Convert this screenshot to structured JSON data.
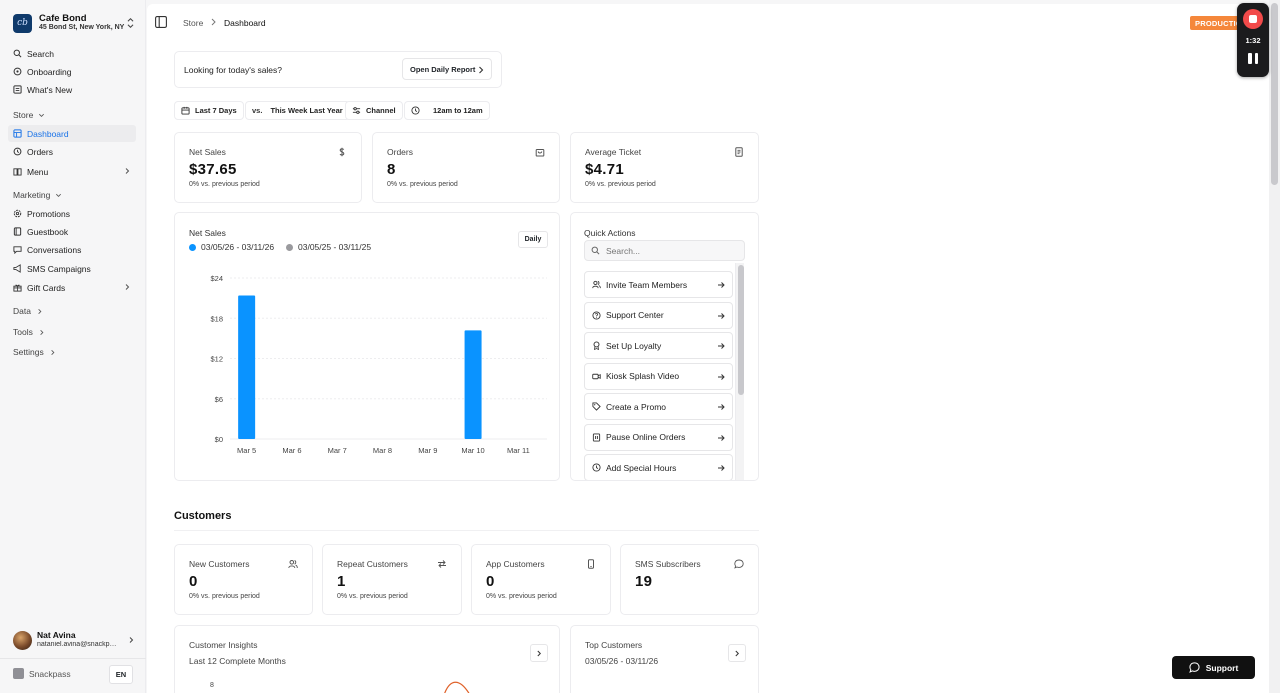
{
  "store": {
    "name": "Cafe Bond",
    "address": "45 Bond St, New York, NY"
  },
  "sidebar": {
    "top_items": [
      {
        "label": "Search",
        "icon": "search-icon"
      },
      {
        "label": "Onboarding",
        "icon": "circle-icon"
      },
      {
        "label": "What's New",
        "icon": "news-icon"
      }
    ],
    "store_group": "Store",
    "store_items": [
      {
        "label": "Dashboard",
        "icon": "grid-icon",
        "active": true
      },
      {
        "label": "Orders",
        "icon": "circle-icon"
      },
      {
        "label": "Menu",
        "icon": "book-icon"
      }
    ],
    "marketing_group": "Marketing",
    "marketing_items": [
      {
        "label": "Promotions",
        "icon": "gear-icon"
      },
      {
        "label": "Guestbook",
        "icon": "book-icon"
      },
      {
        "label": "Conversations",
        "icon": "chat-icon"
      },
      {
        "label": "SMS Campaigns",
        "icon": "megaphone-icon"
      },
      {
        "label": "Gift Cards",
        "icon": "gift-icon"
      }
    ],
    "data_group": "Data",
    "tools_group": "Tools",
    "settings_group": "Settings",
    "user": {
      "name": "Nat Avina",
      "email": "nataniel.avina@snackpass.co"
    },
    "brand": "Snackpass",
    "language": "EN"
  },
  "breadcrumb": {
    "root": "Store",
    "current": "Dashboard"
  },
  "env_badge": "PRODUCTION",
  "recorder": {
    "time": "1:32"
  },
  "promo": {
    "text": "Looking for today's sales?",
    "button": "Open Daily Report"
  },
  "filters": {
    "range": "Last 7 Days",
    "compare_prefix": "vs.",
    "compare": "This Week Last Year",
    "channel": "Channel",
    "hours": "12am to 12am"
  },
  "stats": [
    {
      "label": "Net Sales",
      "value": "$37.65",
      "sub": "0% vs. previous period",
      "icon": "dollar-icon"
    },
    {
      "label": "Orders",
      "value": "8",
      "sub": "0% vs. previous period",
      "icon": "bag-icon"
    },
    {
      "label": "Average Ticket",
      "value": "$4.71",
      "sub": "0% vs. previous period",
      "icon": "receipt-icon"
    }
  ],
  "chart_card": {
    "title": "Net Sales",
    "legend": [
      "03/05/26 - 03/11/26",
      "03/05/25 - 03/11/25"
    ],
    "daily_button": "Daily"
  },
  "chart_data": {
    "type": "bar",
    "categories": [
      "Mar 5",
      "Mar 6",
      "Mar 7",
      "Mar 8",
      "Mar 9",
      "Mar 10",
      "Mar 11"
    ],
    "series": [
      {
        "name": "03/05/26 - 03/11/26",
        "color": "#0a93ff",
        "values": [
          21.4,
          0,
          0,
          0,
          0,
          16.2,
          0
        ]
      },
      {
        "name": "03/05/25 - 03/11/25",
        "color": "#9a9a9e",
        "values": [
          0,
          0,
          0,
          0,
          0,
          0,
          0
        ]
      }
    ],
    "yticks": [
      "$24",
      "$18",
      "$12",
      "$6",
      "$0"
    ],
    "ylim": [
      0,
      24
    ],
    "grid": true
  },
  "quick_actions": {
    "title": "Quick Actions",
    "search_placeholder": "Search...",
    "items": [
      {
        "label": "Invite Team Members",
        "icon": "users-icon"
      },
      {
        "label": "Support Center",
        "icon": "help-icon"
      },
      {
        "label": "Set Up Loyalty",
        "icon": "award-icon"
      },
      {
        "label": "Kiosk Splash Video",
        "icon": "video-icon"
      },
      {
        "label": "Create a Promo",
        "icon": "tag-icon"
      },
      {
        "label": "Pause Online Orders",
        "icon": "pause-doc-icon"
      },
      {
        "label": "Add Special Hours",
        "icon": "clock-icon"
      }
    ]
  },
  "customers": {
    "title": "Customers",
    "stats": [
      {
        "label": "New Customers",
        "value": "0",
        "sub": "0% vs. previous period",
        "icon": "users-icon"
      },
      {
        "label": "Repeat Customers",
        "value": "1",
        "sub": "0% vs. previous period",
        "icon": "repeat-icon"
      },
      {
        "label": "App Customers",
        "value": "0",
        "sub": "0% vs. previous period",
        "icon": "phone-icon"
      },
      {
        "label": "SMS Subscribers",
        "value": "19",
        "sub": "",
        "icon": "chat-icon"
      }
    ],
    "insights": {
      "title": "Customer Insights",
      "sub": "Last 12 Complete Months",
      "ytick": "8"
    },
    "top": {
      "title": "Top Customers",
      "sub": "03/05/26 - 03/11/26"
    }
  },
  "support_button": "Support"
}
